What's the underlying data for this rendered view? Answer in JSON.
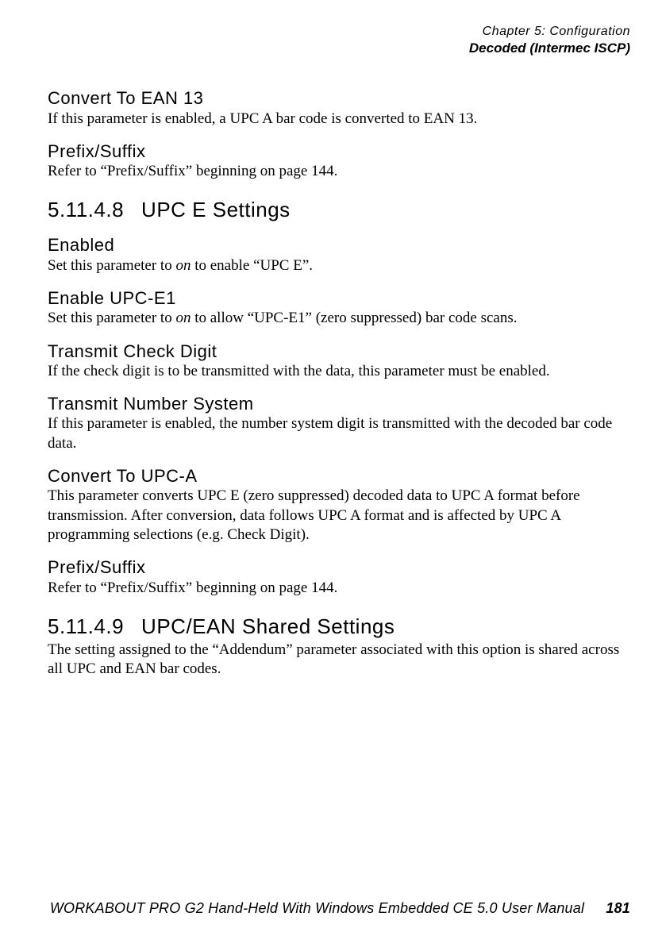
{
  "header": {
    "chapter": "Chapter 5: Configuration",
    "section": "Decoded (Intermec ISCP)"
  },
  "blocks": [
    {
      "type": "sub",
      "text": "Convert To EAN 13"
    },
    {
      "type": "body",
      "text": "If this parameter is enabled, a UPC A bar code is converted to EAN 13."
    },
    {
      "type": "sub",
      "text": "Prefix/Suffix"
    },
    {
      "type": "body",
      "text": "Refer to “Prefix/Suffix” beginning on page 144."
    },
    {
      "type": "num",
      "num": "5.11.4.8",
      "text": "UPC E Settings"
    },
    {
      "type": "sub",
      "text": "Enabled"
    },
    {
      "type": "body",
      "runs": [
        {
          "t": "Set this parameter to "
        },
        {
          "t": "on",
          "em": true
        },
        {
          "t": " to enable “UPC E”."
        }
      ]
    },
    {
      "type": "sub",
      "text": "Enable UPC-E1"
    },
    {
      "type": "body",
      "runs": [
        {
          "t": "Set this parameter to "
        },
        {
          "t": "on",
          "em": true
        },
        {
          "t": " to allow “UPC-E1” (zero suppressed) bar code scans."
        }
      ]
    },
    {
      "type": "sub",
      "text": "Transmit Check Digit"
    },
    {
      "type": "body",
      "text": "If the check digit is to be transmitted with the data, this parameter must be enabled."
    },
    {
      "type": "sub",
      "text": "Transmit Number System"
    },
    {
      "type": "body",
      "text": "If this parameter is enabled, the number system digit is transmitted with the decoded bar code data."
    },
    {
      "type": "sub",
      "text": "Convert To UPC-A"
    },
    {
      "type": "body",
      "text": "This parameter converts UPC E (zero suppressed) decoded data to UPC A format before transmission. After conversion, data follows UPC A format and is affected by UPC A programming selections (e.g. Check Digit)."
    },
    {
      "type": "sub",
      "text": "Prefix/Suffix"
    },
    {
      "type": "body",
      "text": "Refer to “Prefix/Suffix” beginning on page 144."
    },
    {
      "type": "num",
      "num": "5.11.4.9",
      "text": "UPC/EAN Shared Settings"
    },
    {
      "type": "body",
      "text": "The setting assigned to the “Addendum” parameter associated with this option is shared across all UPC and EAN bar codes."
    }
  ],
  "footer": {
    "title": "WORKABOUT PRO G2 Hand-Held With Windows Embedded CE 5.0 User Manual",
    "page": "181"
  }
}
